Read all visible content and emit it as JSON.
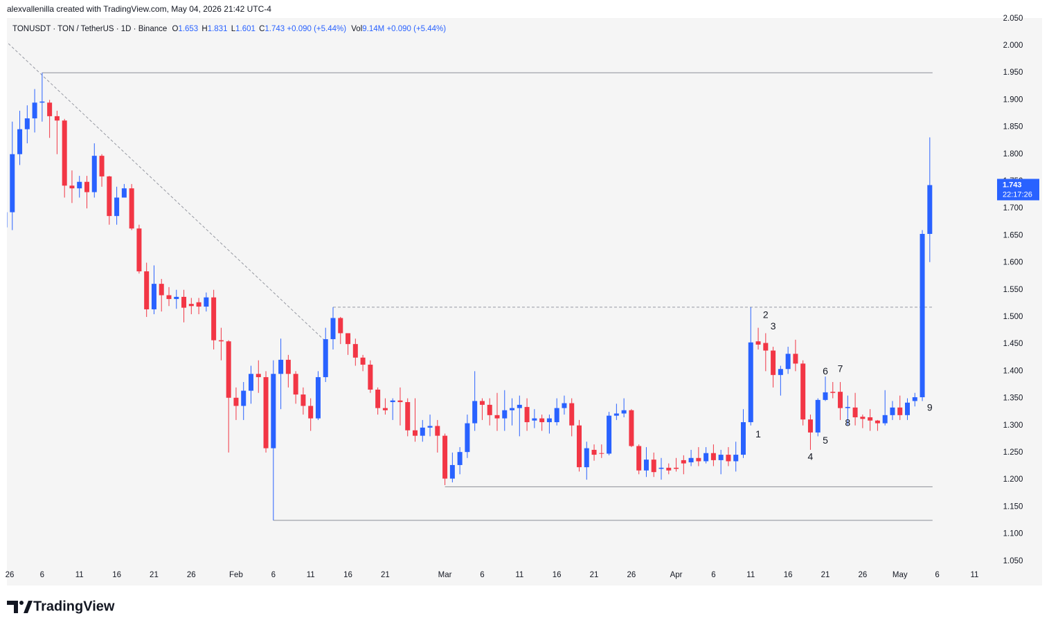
{
  "chart_data": {
    "type": "candlestick",
    "credit": "alexvallenilla created with TradingView.com, May 04, 2026 21:42 UTC-4",
    "symbol": "TONUSDT · TON / TetherUS · 1D · Binance",
    "ohlc_labels": [
      "O",
      "H",
      "L",
      "C"
    ],
    "change": "+0.090 (+5.44%)",
    "volume_label": "Vol",
    "volume": "9.14M",
    "volume_change": "+0.090 (+5.44%)",
    "countdown": "22:17:26",
    "brand": "TradingView",
    "up_color": "#2962ff",
    "down_color": "#f23645",
    "grid": false,
    "x": [
      "2026-01-01",
      "2026-01-02",
      "2026-01-03",
      "2026-01-04",
      "2026-01-05",
      "2026-01-06",
      "2026-01-07",
      "2026-01-08",
      "2026-01-09",
      "2026-01-10",
      "2026-01-11",
      "2026-01-12",
      "2026-01-13",
      "2026-01-14",
      "2026-01-15",
      "2026-01-16",
      "2026-01-17",
      "2026-01-18",
      "2026-01-19",
      "2026-01-20",
      "2026-01-21",
      "2026-01-22",
      "2026-01-23",
      "2026-01-24",
      "2026-01-25",
      "2026-01-26",
      "2026-01-27",
      "2026-01-28",
      "2026-01-29",
      "2026-01-30",
      "2026-01-31",
      "2026-02-01",
      "2026-02-02",
      "2026-02-03",
      "2026-02-04",
      "2026-02-05",
      "2026-02-06",
      "2026-02-07",
      "2026-02-08",
      "2026-02-09",
      "2026-02-10",
      "2026-02-11",
      "2026-02-12",
      "2026-02-13",
      "2026-02-14",
      "2026-02-15",
      "2026-02-16",
      "2026-02-17",
      "2026-02-18",
      "2026-02-19",
      "2026-02-20",
      "2026-02-21",
      "2026-02-22",
      "2026-02-23",
      "2026-02-24",
      "2026-02-25",
      "2026-02-26",
      "2026-02-27",
      "2026-02-28",
      "2026-03-01",
      "2026-03-02",
      "2026-03-03",
      "2026-03-04",
      "2026-03-05",
      "2026-03-06",
      "2026-03-07",
      "2026-03-08",
      "2026-03-09",
      "2026-03-10",
      "2026-03-11",
      "2026-03-12",
      "2026-03-13",
      "2026-03-14",
      "2026-03-15",
      "2026-03-16",
      "2026-03-17",
      "2026-03-18",
      "2026-03-19",
      "2026-03-20",
      "2026-03-21",
      "2026-03-22",
      "2026-03-23",
      "2026-03-24",
      "2026-03-25",
      "2026-03-26",
      "2026-03-27",
      "2026-03-28",
      "2026-03-29",
      "2026-03-30",
      "2026-03-31",
      "2026-04-01",
      "2026-04-02",
      "2026-04-03",
      "2026-04-04",
      "2026-04-05",
      "2026-04-06",
      "2026-04-07",
      "2026-04-08",
      "2026-04-09",
      "2026-04-10",
      "2026-04-11",
      "2026-04-12",
      "2026-04-13",
      "2026-04-14",
      "2026-04-15",
      "2026-04-16",
      "2026-04-17",
      "2026-04-18",
      "2026-04-19",
      "2026-04-20",
      "2026-04-21",
      "2026-04-22",
      "2026-04-23",
      "2026-04-24",
      "2026-04-25",
      "2026-04-26",
      "2026-04-27",
      "2026-04-28",
      "2026-04-29",
      "2026-04-30",
      "2026-05-01",
      "2026-05-02",
      "2026-05-03",
      "2026-05-04",
      "2026-05-05"
    ],
    "open": [
      1.665,
      1.693,
      1.8,
      1.846,
      1.866,
      1.895,
      1.895,
      1.87,
      1.862,
      1.742,
      1.737,
      1.749,
      1.73,
      1.797,
      1.759,
      1.686,
      1.72,
      1.737,
      1.663,
      1.584,
      1.514,
      1.561,
      1.54,
      1.533,
      1.537,
      1.524,
      1.527,
      1.519,
      1.536,
      1.457,
      1.455,
      1.351,
      1.336,
      1.364,
      1.395,
      1.389,
      1.258,
      1.395,
      1.421,
      1.395,
      1.357,
      1.336,
      1.313,
      1.389,
      1.459,
      1.498,
      1.47,
      1.45,
      1.425,
      1.412,
      1.366,
      1.332,
      1.343,
      1.346,
      1.343,
      1.291,
      1.281,
      1.296,
      1.299,
      1.281,
      1.202,
      1.227,
      1.251,
      1.304,
      1.345,
      1.338,
      1.319,
      1.313,
      1.328,
      1.332,
      1.334,
      1.309,
      1.313,
      1.306,
      1.306,
      1.332,
      1.341,
      1.3,
      1.223,
      1.255,
      1.249,
      1.248,
      1.318,
      1.322,
      1.328,
      1.262,
      1.217,
      1.237,
      1.22,
      1.222,
      1.222,
      1.236,
      1.232,
      1.24,
      1.234,
      1.249,
      1.236,
      1.246,
      1.234,
      1.246,
      1.306,
      1.455,
      1.452,
      1.438,
      1.393,
      1.404,
      1.432,
      1.414,
      1.311,
      1.287,
      1.347,
      1.362,
      1.362,
      1.332,
      1.333,
      1.316,
      1.315,
      1.309,
      1.304,
      1.319,
      1.333,
      1.319,
      1.345,
      1.352,
      1.653
    ],
    "high": [
      1.7,
      1.86,
      1.88,
      1.89,
      1.92,
      1.95,
      1.9,
      1.88,
      1.865,
      1.77,
      1.76,
      1.76,
      1.82,
      1.8,
      1.76,
      1.74,
      1.745,
      1.745,
      1.67,
      1.6,
      1.595,
      1.57,
      1.555,
      1.55,
      1.55,
      1.535,
      1.535,
      1.545,
      1.55,
      1.48,
      1.457,
      1.37,
      1.38,
      1.41,
      1.42,
      1.4,
      1.42,
      1.46,
      1.43,
      1.4,
      1.37,
      1.35,
      1.4,
      1.48,
      1.518,
      1.5,
      1.47,
      1.46,
      1.43,
      1.42,
      1.37,
      1.35,
      1.35,
      1.37,
      1.35,
      1.35,
      1.31,
      1.32,
      1.31,
      1.285,
      1.25,
      1.26,
      1.32,
      1.4,
      1.35,
      1.35,
      1.36,
      1.365,
      1.35,
      1.355,
      1.35,
      1.33,
      1.32,
      1.32,
      1.35,
      1.355,
      1.35,
      1.31,
      1.27,
      1.265,
      1.265,
      1.325,
      1.34,
      1.35,
      1.33,
      1.265,
      1.26,
      1.25,
      1.24,
      1.23,
      1.24,
      1.245,
      1.255,
      1.26,
      1.26,
      1.265,
      1.255,
      1.26,
      1.27,
      1.33,
      1.518,
      1.48,
      1.47,
      1.445,
      1.41,
      1.445,
      1.458,
      1.42,
      1.32,
      1.35,
      1.39,
      1.38,
      1.38,
      1.355,
      1.36,
      1.32,
      1.33,
      1.31,
      1.365,
      1.345,
      1.355,
      1.35,
      1.36,
      1.66,
      1.831
    ],
    "low": [
      1.655,
      1.66,
      1.78,
      1.82,
      1.84,
      1.86,
      1.83,
      1.8,
      1.72,
      1.71,
      1.72,
      1.7,
      1.72,
      1.74,
      1.67,
      1.67,
      1.72,
      1.66,
      1.58,
      1.5,
      1.505,
      1.51,
      1.52,
      1.515,
      1.49,
      1.505,
      1.505,
      1.51,
      1.44,
      1.42,
      1.25,
      1.31,
      1.31,
      1.34,
      1.36,
      1.25,
      1.125,
      1.33,
      1.37,
      1.34,
      1.32,
      1.29,
      1.31,
      1.38,
      1.44,
      1.45,
      1.43,
      1.41,
      1.4,
      1.36,
      1.32,
      1.32,
      1.31,
      1.3,
      1.28,
      1.27,
      1.27,
      1.28,
      1.25,
      1.19,
      1.195,
      1.21,
      1.24,
      1.29,
      1.31,
      1.3,
      1.29,
      1.29,
      1.3,
      1.28,
      1.29,
      1.295,
      1.29,
      1.285,
      1.3,
      1.32,
      1.28,
      1.215,
      1.2,
      1.235,
      1.24,
      1.245,
      1.31,
      1.315,
      1.26,
      1.21,
      1.205,
      1.205,
      1.2,
      1.21,
      1.215,
      1.21,
      1.225,
      1.225,
      1.23,
      1.225,
      1.21,
      1.225,
      1.215,
      1.24,
      1.3,
      1.44,
      1.4,
      1.37,
      1.355,
      1.395,
      1.4,
      1.3,
      1.255,
      1.28,
      1.345,
      1.35,
      1.31,
      1.3,
      1.3,
      1.295,
      1.29,
      1.29,
      1.3,
      1.31,
      1.31,
      1.31,
      1.335,
      1.345,
      1.601
    ],
    "close": [
      1.693,
      1.8,
      1.846,
      1.866,
      1.895,
      1.897,
      1.87,
      1.862,
      1.742,
      1.737,
      1.749,
      1.73,
      1.797,
      1.759,
      1.686,
      1.72,
      1.737,
      1.663,
      1.584,
      1.514,
      1.561,
      1.54,
      1.533,
      1.537,
      1.517,
      1.52,
      1.519,
      1.536,
      1.457,
      1.455,
      1.351,
      1.336,
      1.364,
      1.395,
      1.389,
      1.258,
      1.395,
      1.421,
      1.395,
      1.357,
      1.336,
      1.313,
      1.389,
      1.459,
      1.498,
      1.47,
      1.45,
      1.425,
      1.412,
      1.366,
      1.332,
      1.328,
      1.346,
      1.343,
      1.291,
      1.281,
      1.296,
      1.299,
      1.281,
      1.202,
      1.227,
      1.251,
      1.304,
      1.345,
      1.338,
      1.319,
      1.313,
      1.328,
      1.332,
      1.338,
      1.306,
      1.313,
      1.306,
      1.313,
      1.332,
      1.341,
      1.3,
      1.223,
      1.258,
      1.246,
      1.248,
      1.318,
      1.322,
      1.328,
      1.262,
      1.217,
      1.237,
      1.214,
      1.222,
      1.217,
      1.22,
      1.23,
      1.24,
      1.234,
      1.249,
      1.236,
      1.246,
      1.234,
      1.246,
      1.306,
      1.453,
      1.449,
      1.438,
      1.393,
      1.404,
      1.432,
      1.414,
      1.311,
      1.287,
      1.347,
      1.361,
      1.36,
      1.332,
      1.334,
      1.315,
      1.312,
      1.309,
      1.304,
      1.319,
      1.333,
      1.319,
      1.342,
      1.352,
      1.653,
      1.743
    ],
    "xlim": [
      "2026-01-01",
      "2026-05-13"
    ],
    "ylim": [
      1.005,
      2.051
    ],
    "yticks": [
      {
        "value": 1.05,
        "label": "1.050"
      },
      {
        "value": 1.1,
        "label": "1.100"
      },
      {
        "value": 1.15,
        "label": "1.150"
      },
      {
        "value": 1.2,
        "label": "1.200"
      },
      {
        "value": 1.25,
        "label": "1.250"
      },
      {
        "value": 1.3,
        "label": "1.300"
      },
      {
        "value": 1.35,
        "label": "1.350"
      },
      {
        "value": 1.4,
        "label": "1.400"
      },
      {
        "value": 1.45,
        "label": "1.450"
      },
      {
        "value": 1.5,
        "label": "1.500"
      },
      {
        "value": 1.55,
        "label": "1.550"
      },
      {
        "value": 1.6,
        "label": "1.600"
      },
      {
        "value": 1.65,
        "label": "1.650"
      },
      {
        "value": 1.7,
        "label": "1.700"
      },
      {
        "value": 1.75,
        "label": "1.750"
      },
      {
        "value": 1.8,
        "label": "1.800"
      },
      {
        "value": 1.85,
        "label": "1.850"
      },
      {
        "value": 1.9,
        "label": "1.900"
      },
      {
        "value": 1.95,
        "label": "1.950"
      },
      {
        "value": 2.0,
        "label": "2.000"
      },
      {
        "value": 2.05,
        "label": "2.050"
      }
    ],
    "xticks": [
      {
        "value": "2026-01-01",
        "label": "26"
      },
      {
        "value": "2026-01-06",
        "label": "6"
      },
      {
        "value": "2026-01-11",
        "label": "11"
      },
      {
        "value": "2026-01-16",
        "label": "16"
      },
      {
        "value": "2026-01-21",
        "label": "21"
      },
      {
        "value": "2026-01-26",
        "label": "26"
      },
      {
        "value": "2026-02-01",
        "label": "Feb"
      },
      {
        "value": "2026-02-06",
        "label": "6"
      },
      {
        "value": "2026-02-11",
        "label": "11"
      },
      {
        "value": "2026-02-16",
        "label": "16"
      },
      {
        "value": "2026-02-21",
        "label": "21"
      },
      {
        "value": "2026-03-01",
        "label": "Mar"
      },
      {
        "value": "2026-03-06",
        "label": "6"
      },
      {
        "value": "2026-03-11",
        "label": "11"
      },
      {
        "value": "2026-03-16",
        "label": "16"
      },
      {
        "value": "2026-03-21",
        "label": "21"
      },
      {
        "value": "2026-03-26",
        "label": "26"
      },
      {
        "value": "2026-04-01",
        "label": "Apr"
      },
      {
        "value": "2026-04-06",
        "label": "6"
      },
      {
        "value": "2026-04-11",
        "label": "11"
      },
      {
        "value": "2026-04-16",
        "label": "16"
      },
      {
        "value": "2026-04-21",
        "label": "21"
      },
      {
        "value": "2026-04-26",
        "label": "26"
      },
      {
        "value": "2026-05-01",
        "label": "May"
      },
      {
        "value": "2026-05-06",
        "label": "6"
      },
      {
        "value": "2026-05-11",
        "label": "11"
      }
    ],
    "levels": [
      {
        "from": "2026-01-06",
        "to": "2026-05-05",
        "value": 1.95,
        "style": "solid"
      },
      {
        "from": "2026-02-14",
        "to": "2026-05-05",
        "value": 1.518,
        "style": "dashed"
      },
      {
        "from": "2026-03-01",
        "to": "2026-05-05",
        "value": 1.187,
        "style": "solid"
      },
      {
        "from": "2026-02-06",
        "to": "2026-05-05",
        "value": 1.125,
        "style": "solid"
      }
    ],
    "trendline": {
      "x": [
        "2026-01-01",
        "2026-02-13"
      ],
      "values": [
        2.01,
        1.455
      ]
    },
    "annotations": [
      {
        "text": "1",
        "x": "2026-04-12",
        "y": 1.283
      },
      {
        "text": "2",
        "x": "2026-04-13",
        "y": 1.503
      },
      {
        "text": "3",
        "x": "2026-04-14",
        "y": 1.482
      },
      {
        "text": "4",
        "x": "2026-04-19",
        "y": 1.241
      },
      {
        "text": "5",
        "x": "2026-04-21",
        "y": 1.271
      },
      {
        "text": "6",
        "x": "2026-04-21",
        "y": 1.399
      },
      {
        "text": "7",
        "x": "2026-04-23",
        "y": 1.403
      },
      {
        "text": "8",
        "x": "2026-04-24",
        "y": 1.304
      },
      {
        "text": "9",
        "x": "2026-05-05",
        "y": 1.332
      }
    ]
  }
}
